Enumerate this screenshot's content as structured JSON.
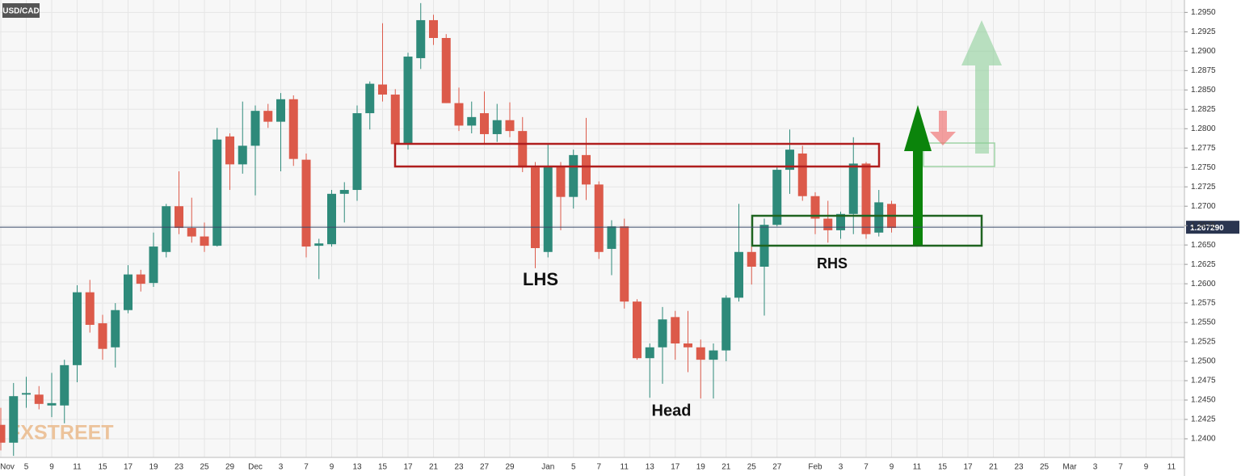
{
  "chart_data": {
    "type": "candlestick",
    "title": "USD/CAD",
    "watermark": "FXSTREET",
    "categories": [
      "Nov",
      null,
      "5",
      null,
      "9",
      null,
      "11",
      null,
      "15",
      null,
      "17",
      null,
      "19",
      null,
      "23",
      null,
      "25",
      null,
      "29",
      null,
      "Dec",
      null,
      "3",
      null,
      "7",
      null,
      "9",
      null,
      "13",
      null,
      "15",
      null,
      "17",
      null,
      "21",
      null,
      "23",
      null,
      "27",
      null,
      "29",
      null,
      null,
      "Jan",
      null,
      "5",
      null,
      "7",
      null,
      "11",
      null,
      "13",
      null,
      "17",
      null,
      "19",
      null,
      "21",
      null,
      "25",
      null,
      "27",
      null,
      null,
      "Feb",
      null,
      "3",
      null,
      "7",
      null,
      "9",
      null,
      "11",
      null,
      "15",
      null,
      "17",
      null,
      "21",
      null,
      "23",
      null,
      "25",
      null,
      "Mar",
      null,
      "3",
      null,
      "7",
      null,
      "9",
      null,
      "11"
    ],
    "open": [
      1.2418,
      1.2395,
      1.2457,
      1.2457,
      1.2443,
      1.2443,
      1.2495,
      1.2589,
      1.2549,
      1.2518,
      1.2566,
      1.2612,
      1.2601,
      1.2641,
      1.27,
      1.2672,
      1.2661,
      1.2649,
      1.279,
      1.2754,
      1.2778,
      1.2823,
      1.2809,
      1.2838,
      1.276,
      1.2649,
      1.2651,
      1.2716,
      1.2721,
      1.282,
      1.2857,
      1.2844,
      1.278,
      1.2891,
      1.294,
      1.2917,
      1.2833,
      1.2804,
      1.282,
      1.2793,
      1.2811,
      1.2797,
      1.275,
      1.2641,
      1.2752,
      1.2712,
      1.2766,
      1.2728,
      1.2645,
      1.2674,
      1.2577,
      1.2504,
      1.2518,
      1.2557,
      1.2523,
      1.2518,
      1.2502,
      1.2514,
      1.2582,
      1.2641,
      1.2622,
      1.2676,
      1.2747,
      1.2768,
      1.2713,
      1.2684,
      1.2669,
      1.269,
      1.2755,
      1.2666,
      1.2703,
      null,
      null,
      null,
      null,
      null,
      null,
      null,
      null,
      null,
      null,
      null,
      null,
      null,
      null,
      null,
      null,
      null,
      null,
      null,
      null,
      null,
      null
    ],
    "high": [
      1.244,
      1.2472,
      1.248,
      1.2468,
      1.2485,
      1.2502,
      1.2598,
      1.2605,
      1.256,
      1.2575,
      1.2624,
      1.2618,
      1.2666,
      1.2703,
      1.2745,
      1.2711,
      1.2679,
      1.2801,
      1.2794,
      1.2835,
      1.283,
      1.2832,
      1.2846,
      1.2843,
      1.2768,
      1.2658,
      1.2721,
      1.2731,
      1.283,
      1.2861,
      1.2936,
      1.2851,
      1.2898,
      1.2962,
      1.2947,
      1.2922,
      1.2853,
      1.2835,
      1.2848,
      1.2832,
      1.2834,
      1.2815,
      1.2757,
      1.278,
      1.2757,
      1.2773,
      1.2814,
      1.2732,
      1.2682,
      1.2684,
      1.258,
      1.2523,
      1.257,
      1.2565,
      1.2565,
      1.2528,
      1.2523,
      1.2585,
      1.2703,
      1.2648,
      1.2684,
      1.2752,
      1.2799,
      1.2778,
      1.2718,
      1.2707,
      1.2693,
      1.2789,
      1.2757,
      1.2721,
      1.2707,
      null,
      null,
      null,
      null,
      null,
      null,
      null,
      null,
      null,
      null,
      null,
      null,
      null,
      null,
      null,
      null,
      null,
      null,
      null,
      null,
      null,
      null
    ],
    "low": [
      1.2385,
      1.2378,
      1.244,
      1.2438,
      1.2428,
      1.242,
      1.2473,
      1.2537,
      1.2502,
      1.2492,
      1.2562,
      1.259,
      1.2596,
      1.2634,
      1.2664,
      1.2653,
      1.2641,
      1.2648,
      1.2721,
      1.2742,
      1.2714,
      1.2801,
      1.2745,
      1.2752,
      1.2634,
      1.2606,
      1.2648,
      1.2679,
      1.2707,
      1.2799,
      1.2835,
      1.2773,
      1.2773,
      1.2877,
      1.2908,
      1.2833,
      1.2797,
      1.2794,
      1.2781,
      1.2783,
      1.2789,
      1.2744,
      1.262,
      1.2634,
      1.2669,
      1.2697,
      1.2708,
      1.2632,
      1.2611,
      1.2568,
      1.2502,
      1.2453,
      1.2471,
      1.2502,
      1.2486,
      1.2452,
      1.2452,
      1.25,
      1.2577,
      1.2599,
      1.2559,
      1.2674,
      1.2716,
      1.2707,
      1.2664,
      1.2653,
      1.2658,
      1.2664,
      1.2658,
      1.2661,
      1.2666,
      null,
      null,
      null,
      null,
      null,
      null,
      null,
      null,
      null,
      null,
      null,
      null,
      null,
      null,
      null,
      null,
      null,
      null,
      null,
      null,
      null,
      null
    ],
    "close": [
      1.2395,
      1.2455,
      1.2459,
      1.2445,
      1.2446,
      1.2495,
      1.2589,
      1.2547,
      1.2516,
      1.2566,
      1.2612,
      1.26,
      1.2648,
      1.27,
      1.2672,
      1.2661,
      1.2649,
      1.2786,
      1.2754,
      1.2778,
      1.2823,
      1.2809,
      1.2838,
      1.2761,
      1.2648,
      1.2652,
      1.2716,
      1.2721,
      1.282,
      1.2858,
      1.2844,
      1.278,
      1.2893,
      1.294,
      1.2917,
      1.2833,
      1.2804,
      1.2815,
      1.2793,
      1.2811,
      1.2797,
      1.275,
      1.2646,
      1.2752,
      1.2712,
      1.2766,
      1.2728,
      1.2641,
      1.2674,
      1.2577,
      1.2504,
      1.2518,
      1.2554,
      1.2523,
      1.2518,
      1.2502,
      1.2514,
      1.2582,
      1.2641,
      1.2622,
      1.2676,
      1.2747,
      1.2773,
      1.2713,
      1.2684,
      1.2669,
      1.269,
      1.2755,
      1.2664,
      1.2705,
      1.2672,
      null,
      null,
      null,
      null,
      null,
      null,
      null,
      null,
      null,
      null,
      null,
      null,
      null,
      null,
      null,
      null,
      null,
      null,
      null,
      null,
      null,
      null
    ],
    "up_color": "#2e8a7a",
    "down_color": "#dc5a4a",
    "last_price": {
      "value": 1.26729,
      "label": "1.267290"
    },
    "ylim": [
      1.2376,
      1.2966
    ],
    "yticks": [
      {
        "value": 1.24,
        "label": "1.2400"
      },
      {
        "value": 1.2425,
        "label": "1.2425"
      },
      {
        "value": 1.245,
        "label": "1.2450"
      },
      {
        "value": 1.2475,
        "label": "1.2475"
      },
      {
        "value": 1.25,
        "label": "1.2500"
      },
      {
        "value": 1.2525,
        "label": "1.2525"
      },
      {
        "value": 1.255,
        "label": "1.2550"
      },
      {
        "value": 1.2575,
        "label": "1.2575"
      },
      {
        "value": 1.26,
        "label": "1.2600"
      },
      {
        "value": 1.2625,
        "label": "1.2625"
      },
      {
        "value": 1.265,
        "label": "1.2650"
      },
      {
        "value": 1.2675,
        "label": "1.2675"
      },
      {
        "value": 1.27,
        "label": "1.2700"
      },
      {
        "value": 1.2725,
        "label": "1.2725"
      },
      {
        "value": 1.275,
        "label": "1.2750"
      },
      {
        "value": 1.2775,
        "label": "1.2775"
      },
      {
        "value": 1.28,
        "label": "1.2800"
      },
      {
        "value": 1.2825,
        "label": "1.2825"
      },
      {
        "value": 1.285,
        "label": "1.2850"
      },
      {
        "value": 1.2875,
        "label": "1.2875"
      },
      {
        "value": 1.29,
        "label": "1.2900"
      },
      {
        "value": 1.2925,
        "label": "1.2925"
      },
      {
        "value": 1.295,
        "label": "1.2950"
      }
    ],
    "grid": true,
    "annotations": [
      "LHS",
      "Head",
      "RHS"
    ]
  }
}
